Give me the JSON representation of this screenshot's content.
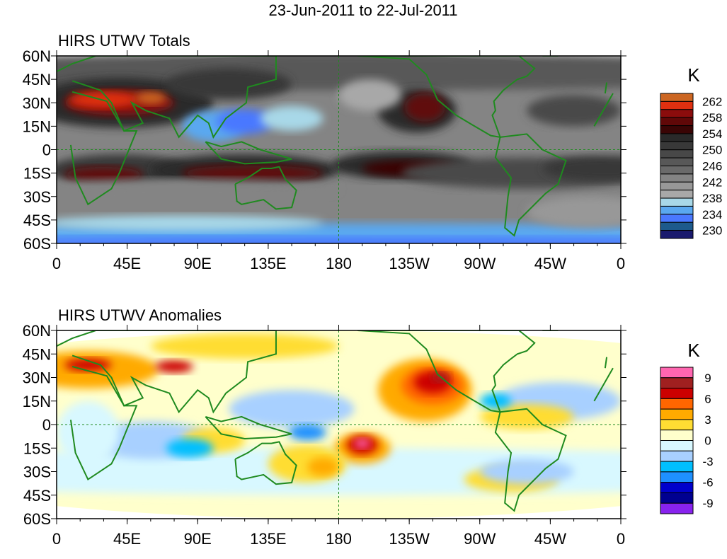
{
  "title": "23-Jun-2011 to 22-Jul-2011",
  "chart_data": [
    {
      "type": "heatmap",
      "title": "HIRS UTWV Totals",
      "units_label": "K",
      "x_ticks": [
        "0",
        "45E",
        "90E",
        "135E",
        "180",
        "135W",
        "90W",
        "45W",
        "0"
      ],
      "y_ticks": [
        "60N",
        "45N",
        "30N",
        "15N",
        "0",
        "15S",
        "30S",
        "45S",
        "60S"
      ],
      "xlim": [
        0,
        360
      ],
      "ylim": [
        -60,
        60
      ],
      "levels": [
        230,
        232,
        234,
        236,
        238,
        240,
        242,
        244,
        246,
        248,
        250,
        252,
        254,
        256,
        258,
        260,
        262
      ],
      "colorbar_labels": [
        "262",
        "258",
        "254",
        "250",
        "246",
        "242",
        "238",
        "234",
        "230"
      ],
      "colors": [
        "#1a1a6e",
        "#1d5a8c",
        "#4a78ff",
        "#5aa8f0",
        "#a8d8e8",
        "#a8a8a8",
        "#989898",
        "#848484",
        "#6a6a6a",
        "#585858",
        "#484848",
        "#383838",
        "#2a2a2a",
        "#3a0505",
        "#600808",
        "#8b0c0c",
        "#e03010",
        "#cc6622"
      ]
    },
    {
      "type": "heatmap",
      "title": "HIRS UTWV Anomalies",
      "units_label": "K",
      "x_ticks": [
        "0",
        "45E",
        "90E",
        "135E",
        "180",
        "135W",
        "90W",
        "45W",
        "0"
      ],
      "y_ticks": [
        "60N",
        "45N",
        "30N",
        "15N",
        "0",
        "15S",
        "30S",
        "45S",
        "60S"
      ],
      "xlim": [
        0,
        360
      ],
      "ylim": [
        -60,
        60
      ],
      "levels": [
        -9,
        -7.5,
        -6,
        -4.5,
        -3,
        -1.5,
        0,
        1.5,
        3,
        4.5,
        6,
        7.5,
        9
      ],
      "colorbar_labels": [
        "9",
        "6",
        "3",
        "0",
        "-3",
        "-6",
        "-9"
      ],
      "colors": [
        "#8822ee",
        "#000090",
        "#0000cc",
        "#1e90ff",
        "#00bfff",
        "#a8d0ff",
        "#d8f8ff",
        "#ffffcc",
        "#ffdd33",
        "#ffaa00",
        "#ff6600",
        "#cc0000",
        "#a02020",
        "#ff66b0"
      ]
    }
  ]
}
